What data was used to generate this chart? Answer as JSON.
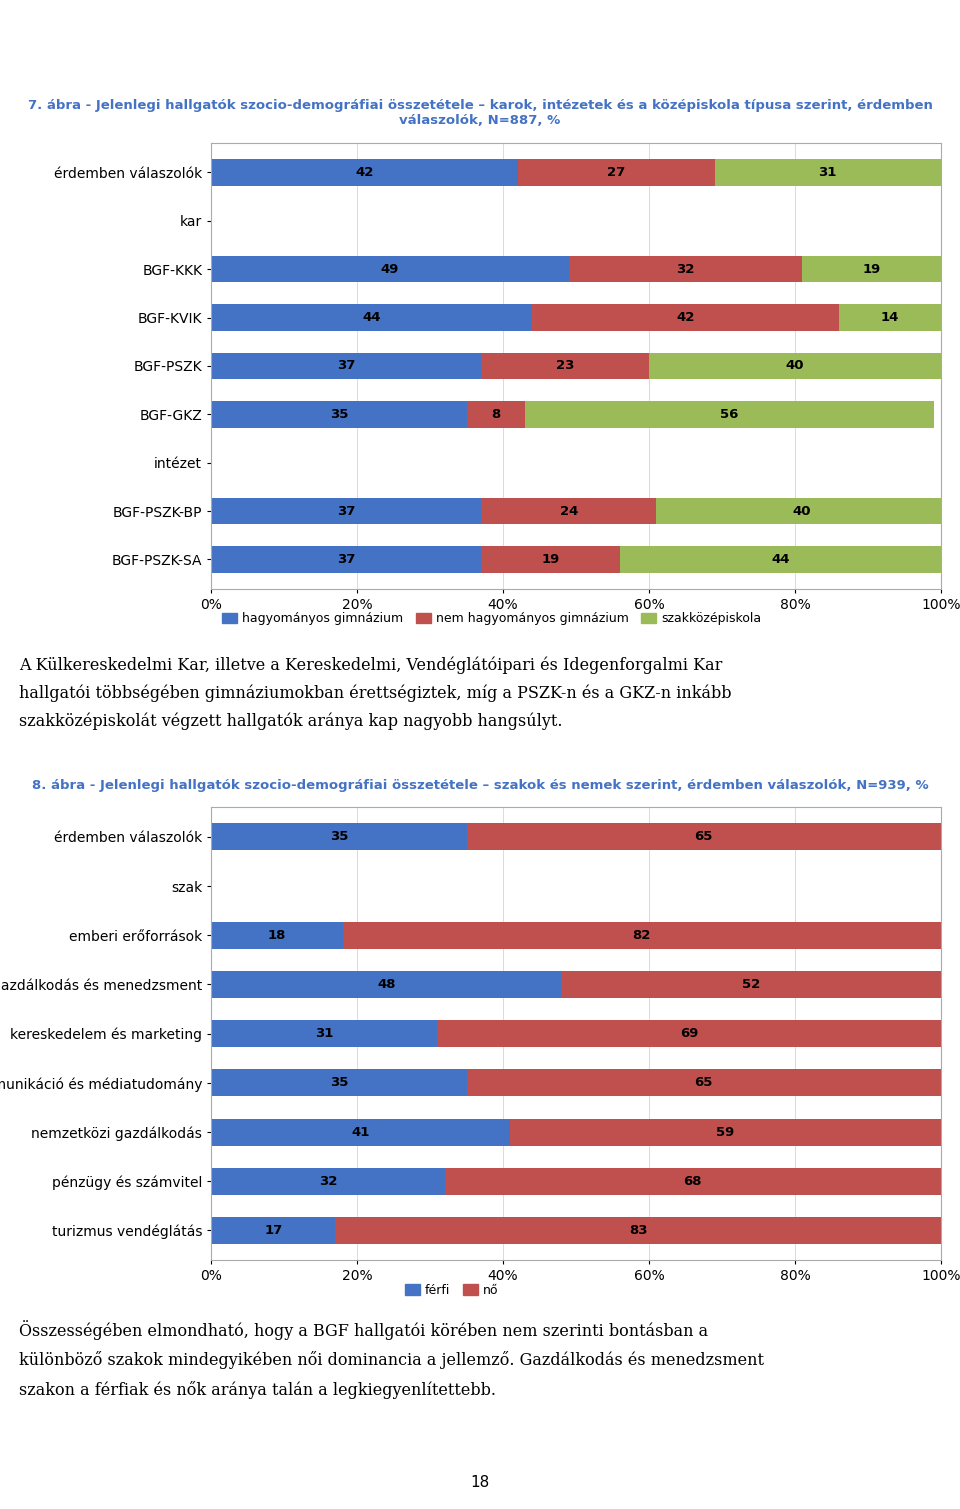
{
  "chart1": {
    "title": "7. ábra - Jelenlegi hallgatók szocio-demográfiai összetétele – karok, intézetek és a középiskola típusa szerint, érdemben\nválaszolók, N=887, %",
    "categories": [
      "érdemben válaszolók",
      "kar",
      "BGF-KKK",
      "BGF-KVIK",
      "BGF-PSZK",
      "BGF-GKZ",
      "intézet",
      "BGF-PSZK-BP",
      "BGF-PSZK-SA"
    ],
    "values_gym": [
      42,
      null,
      49,
      44,
      37,
      35,
      null,
      37,
      37
    ],
    "values_nem_gym": [
      27,
      null,
      32,
      42,
      23,
      8,
      null,
      24,
      19
    ],
    "values_szak": [
      31,
      null,
      19,
      14,
      40,
      56,
      null,
      40,
      44
    ],
    "colors": [
      "#4472C4",
      "#C0504D",
      "#9BBB59"
    ],
    "legend_labels": [
      "hagyományos gimnázium",
      "nem hagyományos gimnázium",
      "szakközépiskola"
    ],
    "bar_height": 0.55,
    "separator_rows": [
      "kar",
      "intézet"
    ],
    "xticks": [
      0,
      20,
      40,
      60,
      80,
      100
    ],
    "xticklabels": [
      "0%",
      "20%",
      "40%",
      "60%",
      "80%",
      "100%"
    ]
  },
  "text_between": "A Külkereskedelmi Kar, illetve a Kereskedelmi, Vendéglátóipari és Idegenforgalmi Kar hallgatói többségében gimnáziumokban érettségiztek, míg a PSZK-n és a GKZ-n inkább szakközépiskolát végzett hallgatók aránya kap nagyobb hangsúlyt.",
  "chart2": {
    "title": "8. ábra - Jelenlegi hallgatók szocio-demográfiai összetétele – szakok és nemek szerint, érdemben válaszolók, N=939, %",
    "categories": [
      "érdemben válaszolók",
      "szak",
      "emberi erőforrások",
      "gazdálkodás és menedzsment",
      "kereskedelem és marketing",
      "kommunikáció és médiatudomány",
      "nemzetközi gazdálkodás",
      "pénzügy és számvitel",
      "turizmus vendéglátás"
    ],
    "values_ferfi": [
      35,
      null,
      18,
      48,
      31,
      35,
      41,
      32,
      17
    ],
    "values_no": [
      65,
      null,
      82,
      52,
      69,
      65,
      59,
      68,
      83
    ],
    "colors": [
      "#4472C4",
      "#C0504D"
    ],
    "legend_labels": [
      "férfi",
      "nő"
    ],
    "bar_height": 0.55,
    "separator_rows": [
      "szak"
    ],
    "xticks": [
      0,
      20,
      40,
      60,
      80,
      100
    ],
    "xticklabels": [
      "0%",
      "20%",
      "40%",
      "60%",
      "80%",
      "100%"
    ]
  },
  "text_between_lines": [
    "A Külkereskedelmi Kar, illetve a Kereskedelmi, Vendéglátóipari és Idegenforgalmi Kar",
    "hallgatói többségében gimnáziumokban érettségiztek, míg a PSZK-n és a GKZ-n inkább",
    "szakközépiskolát végzett hallgatók aránya kap nagyobb hangsúlyt."
  ],
  "footer_lines": [
    "Összességében elmondható, hogy a BGF hallgatói körében nem szerinti bontásban a",
    "különböző szakok mindegyikében női dominancia a jellemző. Gazdálkodás és menedzsment",
    "szakon a férfiak és nők aránya talán a legkiegyenlítettebb."
  ],
  "page_number": "18",
  "title_color": "#4472C4",
  "title_fontsize": 9.5,
  "label_fontsize": 10,
  "bar_label_fontsize": 9.5,
  "body_fontsize": 11.5,
  "chart2_title_color": "#4472C4",
  "chart2_title_fontsize": 9.5
}
